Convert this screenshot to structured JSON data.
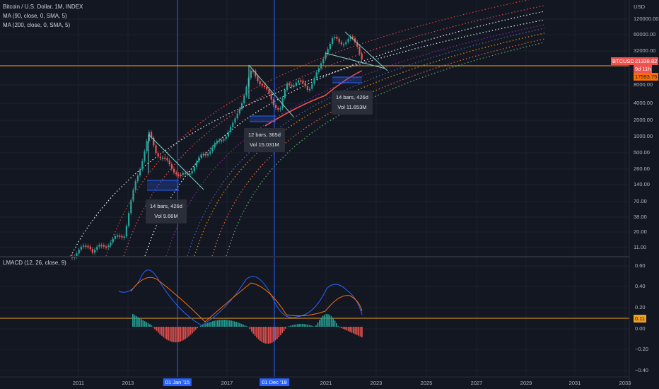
{
  "header": {
    "symbol": "Bitcoin / U.S. Dollar, 1M, INDEX",
    "ma1": "MA (90, close, 0, SMA, 5)",
    "ma2": "MA (200, close, 0, SMA, 5)",
    "indicator": "LMACD (12, 26, close, 9)"
  },
  "price_axis": {
    "unit": "USD",
    "ticks": [
      "120000.00",
      "60000.00",
      "32000.00",
      "8000.00",
      "4000.00",
      "2000.00",
      "1000.00",
      "500.00",
      "260.00",
      "140.00",
      "70.00",
      "38.00",
      "20.00",
      "11.00"
    ]
  },
  "macd_axis": {
    "ticks": [
      "0.60",
      "0.40",
      "0.20",
      "0.00",
      "−0.20",
      "−0.40"
    ]
  },
  "price_tags": {
    "ticker": "BTCUSD",
    "price": "21338.82",
    "countdown": "9d 11h",
    "ma_value": "17593.75",
    "macd_value": "0.11"
  },
  "time_axis": {
    "labels": [
      "2011",
      "2013",
      "01 Jan '15",
      "2017",
      "01 Dec '18",
      "2021",
      "2023",
      "2025",
      "2027",
      "2029",
      "2031",
      "2033"
    ]
  },
  "annotations": [
    {
      "bars": "14 bars, 426d",
      "vol": "Vol 9.66M"
    },
    {
      "bars": "12 bars, 365d",
      "vol": "Vol 15.031M"
    },
    {
      "bars": "14 bars, 426d",
      "vol": "Vol 11.653M"
    }
  ],
  "colors": {
    "background": "#131722",
    "up": "#26a69a",
    "down": "#ef5350",
    "price_line": "#f0a01e",
    "vertical_marker": "#2962ff",
    "macd_line": "#2962ff",
    "signal_line": "#ff6d00"
  }
}
